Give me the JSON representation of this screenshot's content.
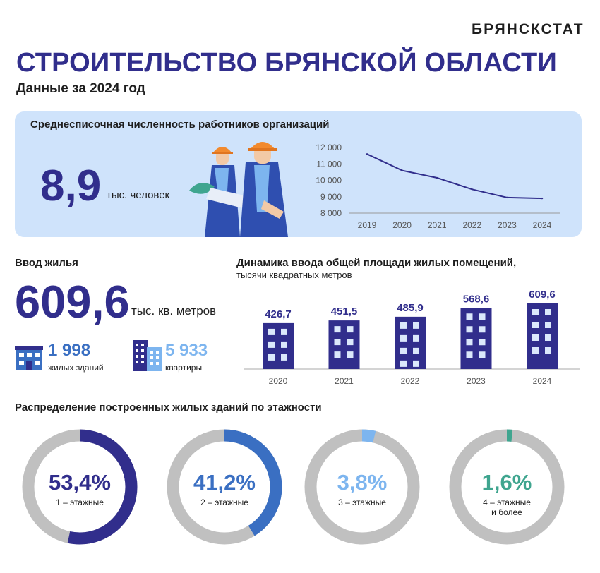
{
  "brand": "БРЯНСКСТАТ",
  "title": "СТРОИТЕЛЬСТВО БРЯНСКОЙ ОБЛАСТИ",
  "subtitle": "Данные за 2024 год",
  "workers": {
    "heading": "Среднесписочная численность работников организаций",
    "value": "8,9",
    "unit": "тыс. человек"
  },
  "housing": {
    "heading": "Ввод жилья",
    "value": "609,6",
    "unit": "тыс. кв. метров",
    "buildings_value": "1 998",
    "buildings_label": "жилых зданий",
    "apartments_value": "5 933",
    "apartments_label": "квартиры"
  },
  "colors": {
    "primary": "#312e8c",
    "blue": "#3a6fc2",
    "light_blue": "#7db5ef",
    "teal": "#3fa58f",
    "gray": "#c0c0c0",
    "panel": "#cfe3fb"
  },
  "chart_data": [
    {
      "type": "line",
      "x": [
        "2019",
        "2020",
        "2021",
        "2022",
        "2023",
        "2024"
      ],
      "values": [
        11600,
        10600,
        10150,
        9450,
        8950,
        8900
      ],
      "ylim": [
        8000,
        12000
      ],
      "yticks": [
        "12 000",
        "11 000",
        "10 000",
        "9 000",
        "8 000"
      ],
      "grid": false
    },
    {
      "type": "bar",
      "title": "Динамика ввода общей площади жилых помещений,",
      "subtitle": "тысячи квадратных метров",
      "categories": [
        "2020",
        "2021",
        "2022",
        "2023",
        "2024"
      ],
      "values": [
        426.7,
        451.5,
        485.9,
        568.6,
        609.6
      ],
      "labels": [
        "426,7",
        "451,5",
        "485,9",
        "568,6",
        "609,6"
      ]
    },
    {
      "type": "pie",
      "title": "Распределение построенных жилых  зданий по этажности",
      "slices": [
        {
          "pct": 53.4,
          "label": "53,4%",
          "name_lines": [
            "1 – этажные"
          ],
          "color": "#312e8c"
        },
        {
          "pct": 41.2,
          "label": "41,2%",
          "name_lines": [
            "2 – этажные"
          ],
          "color": "#3a6fc2"
        },
        {
          "pct": 3.8,
          "label": "3,8%",
          "name_lines": [
            "3 – этажные"
          ],
          "color": "#7db5ef"
        },
        {
          "pct": 1.6,
          "label": "1,6%",
          "name_lines": [
            "4 – этажные",
            "и более"
          ],
          "color": "#3fa58f"
        }
      ]
    }
  ]
}
